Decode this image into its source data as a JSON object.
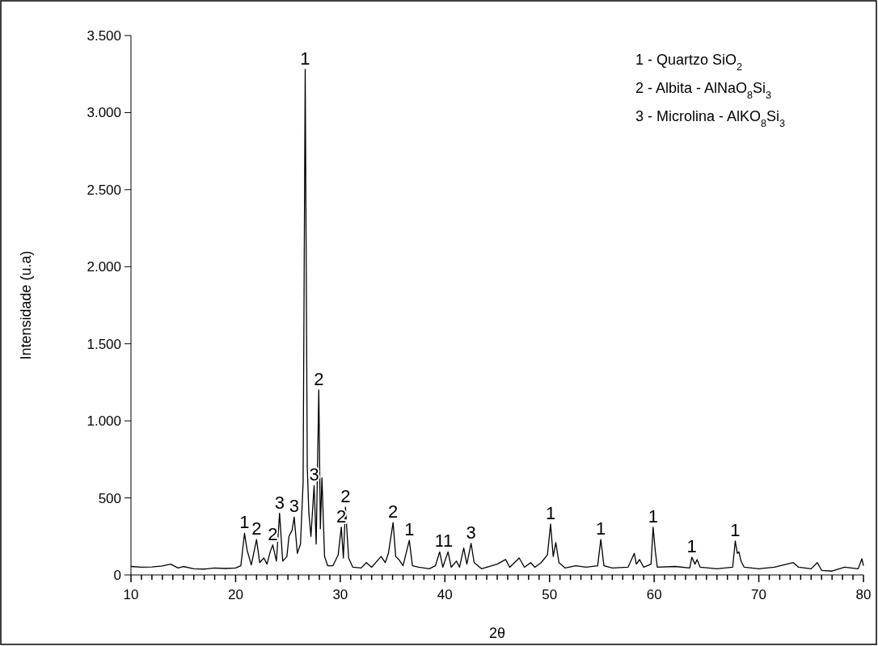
{
  "chart_data": {
    "type": "line",
    "xlabel": "2θ",
    "ylabel": "Intensidade (u.a)",
    "x": [
      10,
      11,
      12,
      13,
      13.8,
      14.5,
      15,
      16,
      17,
      18,
      19,
      20,
      20.5,
      20.85,
      21.1,
      21.5,
      22.0,
      22.3,
      22.7,
      23.0,
      23.3,
      23.55,
      23.9,
      24.2,
      24.5,
      24.9,
      25.1,
      25.4,
      25.6,
      25.9,
      26.2,
      26.45,
      26.65,
      26.85,
      27.0,
      27.2,
      27.5,
      27.7,
      27.95,
      28.1,
      28.25,
      28.5,
      28.8,
      29.3,
      29.8,
      30.1,
      30.3,
      30.5,
      30.8,
      31.2,
      32,
      32.5,
      33,
      33.9,
      34.3,
      34.6,
      35.05,
      35.3,
      35.6,
      36.0,
      36.6,
      36.9,
      37.5,
      38.5,
      39.1,
      39.5,
      39.8,
      40.3,
      40.6,
      41.1,
      41.4,
      41.8,
      42.1,
      42.5,
      42.8,
      43.5,
      45,
      45.8,
      46.2,
      47.1,
      47.6,
      48.2,
      48.6,
      49.2,
      49.8,
      50.1,
      50.35,
      50.6,
      50.9,
      51.5,
      52.5,
      53.5,
      54.6,
      54.9,
      55.2,
      56,
      57.5,
      58.1,
      58.3,
      58.6,
      59.0,
      59.7,
      59.9,
      60.1,
      60.3,
      62,
      63.4,
      63.6,
      63.9,
      64.1,
      64.4,
      66,
      67.5,
      67.75,
      67.95,
      68.1,
      68.3,
      68.6,
      70,
      71.5,
      73.3,
      73.8,
      75,
      75.6,
      76,
      77,
      78.2,
      79.5,
      79.85,
      80
    ],
    "series": [
      {
        "color": "#000000",
        "values": [
          55,
          50,
          52,
          58,
          70,
          45,
          55,
          40,
          38,
          45,
          42,
          45,
          60,
          270,
          160,
          65,
          230,
          80,
          110,
          70,
          150,
          195,
          90,
          400,
          90,
          120,
          250,
          290,
          375,
          140,
          200,
          600,
          3280,
          700,
          400,
          250,
          580,
          200,
          1200,
          300,
          630,
          120,
          60,
          60,
          130,
          310,
          110,
          440,
          110,
          50,
          45,
          80,
          50,
          120,
          80,
          140,
          340,
          120,
          100,
          60,
          225,
          60,
          50,
          40,
          60,
          150,
          50,
          150,
          50,
          90,
          50,
          175,
          70,
          205,
          80,
          40,
          70,
          100,
          50,
          110,
          50,
          80,
          50,
          80,
          130,
          330,
          120,
          210,
          80,
          45,
          60,
          50,
          60,
          230,
          60,
          45,
          50,
          140,
          70,
          100,
          50,
          70,
          310,
          160,
          50,
          55,
          45,
          115,
          70,
          100,
          50,
          40,
          50,
          220,
          140,
          150,
          90,
          50,
          40,
          50,
          80,
          50,
          40,
          80,
          30,
          25,
          50,
          40,
          105,
          60
        ]
      }
    ],
    "xlim": [
      10,
      80
    ],
    "xticks": [
      10,
      {
        "value": 11,
        "label": null
      },
      {
        "value": 12,
        "label": null
      },
      {
        "value": 13,
        "label": null
      },
      {
        "value": 14,
        "label": null
      },
      {
        "value": 15,
        "label": null
      },
      {
        "value": 16,
        "label": null
      },
      {
        "value": 17,
        "label": null
      },
      {
        "value": 18,
        "label": null
      },
      {
        "value": 19,
        "label": null
      },
      20,
      {
        "value": 21,
        "label": null
      },
      {
        "value": 22,
        "label": null
      },
      {
        "value": 23,
        "label": null
      },
      {
        "value": 24,
        "label": null
      },
      {
        "value": 25,
        "label": null
      },
      {
        "value": 26,
        "label": null
      },
      {
        "value": 27,
        "label": null
      },
      {
        "value": 28,
        "label": null
      },
      {
        "value": 29,
        "label": null
      },
      30,
      {
        "value": 31,
        "label": null
      },
      {
        "value": 32,
        "label": null
      },
      {
        "value": 33,
        "label": null
      },
      {
        "value": 34,
        "label": null
      },
      {
        "value": 35,
        "label": null
      },
      {
        "value": 36,
        "label": null
      },
      {
        "value": 37,
        "label": null
      },
      {
        "value": 38,
        "label": null
      },
      {
        "value": 39,
        "label": null
      },
      40,
      {
        "value": 41,
        "label": null
      },
      {
        "value": 42,
        "label": null
      },
      {
        "value": 43,
        "label": null
      },
      {
        "value": 44,
        "label": null
      },
      {
        "value": 45,
        "label": null
      },
      {
        "value": 46,
        "label": null
      },
      {
        "value": 47,
        "label": null
      },
      {
        "value": 48,
        "label": null
      },
      {
        "value": 49,
        "label": null
      },
      50,
      {
        "value": 51,
        "label": null
      },
      {
        "value": 52,
        "label": null
      },
      {
        "value": 53,
        "label": null
      },
      {
        "value": 54,
        "label": null
      },
      {
        "value": 55,
        "label": null
      },
      {
        "value": 56,
        "label": null
      },
      {
        "value": 57,
        "label": null
      },
      {
        "value": 58,
        "label": null
      },
      {
        "value": 59,
        "label": null
      },
      60,
      {
        "value": 61,
        "label": null
      },
      {
        "value": 62,
        "label": null
      },
      {
        "value": 63,
        "label": null
      },
      {
        "value": 64,
        "label": null
      },
      {
        "value": 65,
        "label": null
      },
      {
        "value": 66,
        "label": null
      },
      {
        "value": 67,
        "label": null
      },
      {
        "value": 68,
        "label": null
      },
      {
        "value": 69,
        "label": null
      },
      70,
      {
        "value": 71,
        "label": null
      },
      {
        "value": 72,
        "label": null
      },
      {
        "value": 73,
        "label": null
      },
      {
        "value": 74,
        "label": null
      },
      {
        "value": 75,
        "label": null
      },
      {
        "value": 76,
        "label": null
      },
      {
        "value": 77,
        "label": null
      },
      {
        "value": 78,
        "label": null
      },
      {
        "value": 79,
        "label": null
      },
      80
    ],
    "ylim": [
      0,
      3500
    ],
    "yticks": [
      0,
      500,
      {
        "value": 1000,
        "label": "1.000"
      },
      {
        "value": 1500,
        "label": "1.500"
      },
      {
        "value": 2000,
        "label": "2.000"
      },
      {
        "value": 2500,
        "label": "2.500"
      },
      {
        "value": 3000,
        "label": "3.000"
      },
      {
        "value": 3500,
        "label": "3.500"
      }
    ],
    "grid": false,
    "marker": "none",
    "line_style": "solid",
    "annotations": [
      {
        "text": "1",
        "x": 20.85,
        "y": 270
      },
      {
        "text": "2",
        "x": 22.0,
        "y": 230
      },
      {
        "text": "2",
        "x": 23.55,
        "y": 195
      },
      {
        "text": "3",
        "x": 24.2,
        "y": 400
      },
      {
        "text": "3",
        "x": 25.6,
        "y": 375
      },
      {
        "text": "1",
        "x": 26.65,
        "y": 3280
      },
      {
        "text": "3",
        "x": 27.5,
        "y": 580
      },
      {
        "text": "2",
        "x": 27.95,
        "y": 1200
      },
      {
        "text": "2",
        "x": 30.1,
        "y": 310
      },
      {
        "text": "2",
        "x": 30.5,
        "y": 440
      },
      {
        "text": "2",
        "x": 35.05,
        "y": 340
      },
      {
        "text": "1",
        "x": 36.6,
        "y": 225
      },
      {
        "text": "1",
        "x": 39.5,
        "y": 150
      },
      {
        "text": "1",
        "x": 40.3,
        "y": 150
      },
      {
        "text": "3",
        "x": 42.5,
        "y": 205
      },
      {
        "text": "1",
        "x": 50.1,
        "y": 330
      },
      {
        "text": "1",
        "x": 54.9,
        "y": 230
      },
      {
        "text": "1",
        "x": 59.9,
        "y": 310
      },
      {
        "text": "1",
        "x": 63.6,
        "y": 115
      },
      {
        "text": "1",
        "x": 67.75,
        "y": 220
      },
      "1 - Quartzo SiO$_{2}$",
      "2 - Albita - AlNaO$_{8}$Si$_{3}$",
      "3 - Microlina - AlKO$_{8}$Si$_{3}$"
    ]
  }
}
